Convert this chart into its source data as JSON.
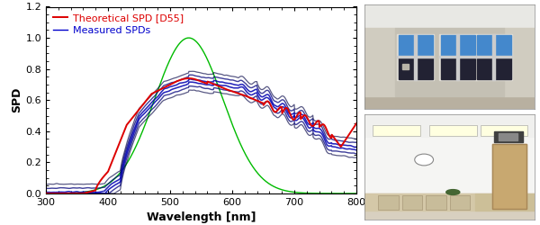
{
  "xlim": [
    300,
    800
  ],
  "ylim": [
    0,
    1.2
  ],
  "xlabel": "Wavelength [nm]",
  "ylabel": "SPD",
  "legend_theoretical": "Theoretical SPD [D55]",
  "legend_measured": "Measured SPDs",
  "theoretical_color": "#dd0000",
  "measured_color_dark": "#0000cc",
  "measured_color_light": "#8888ff",
  "green_color": "#00bb00",
  "bg_color": "white",
  "tick_fontsize": 8,
  "label_fontsize": 9,
  "legend_fontsize": 8,
  "yticks": [
    0.0,
    0.2,
    0.4,
    0.6,
    0.8,
    1.0,
    1.2
  ],
  "xticks": [
    300,
    400,
    500,
    600,
    700,
    800
  ]
}
